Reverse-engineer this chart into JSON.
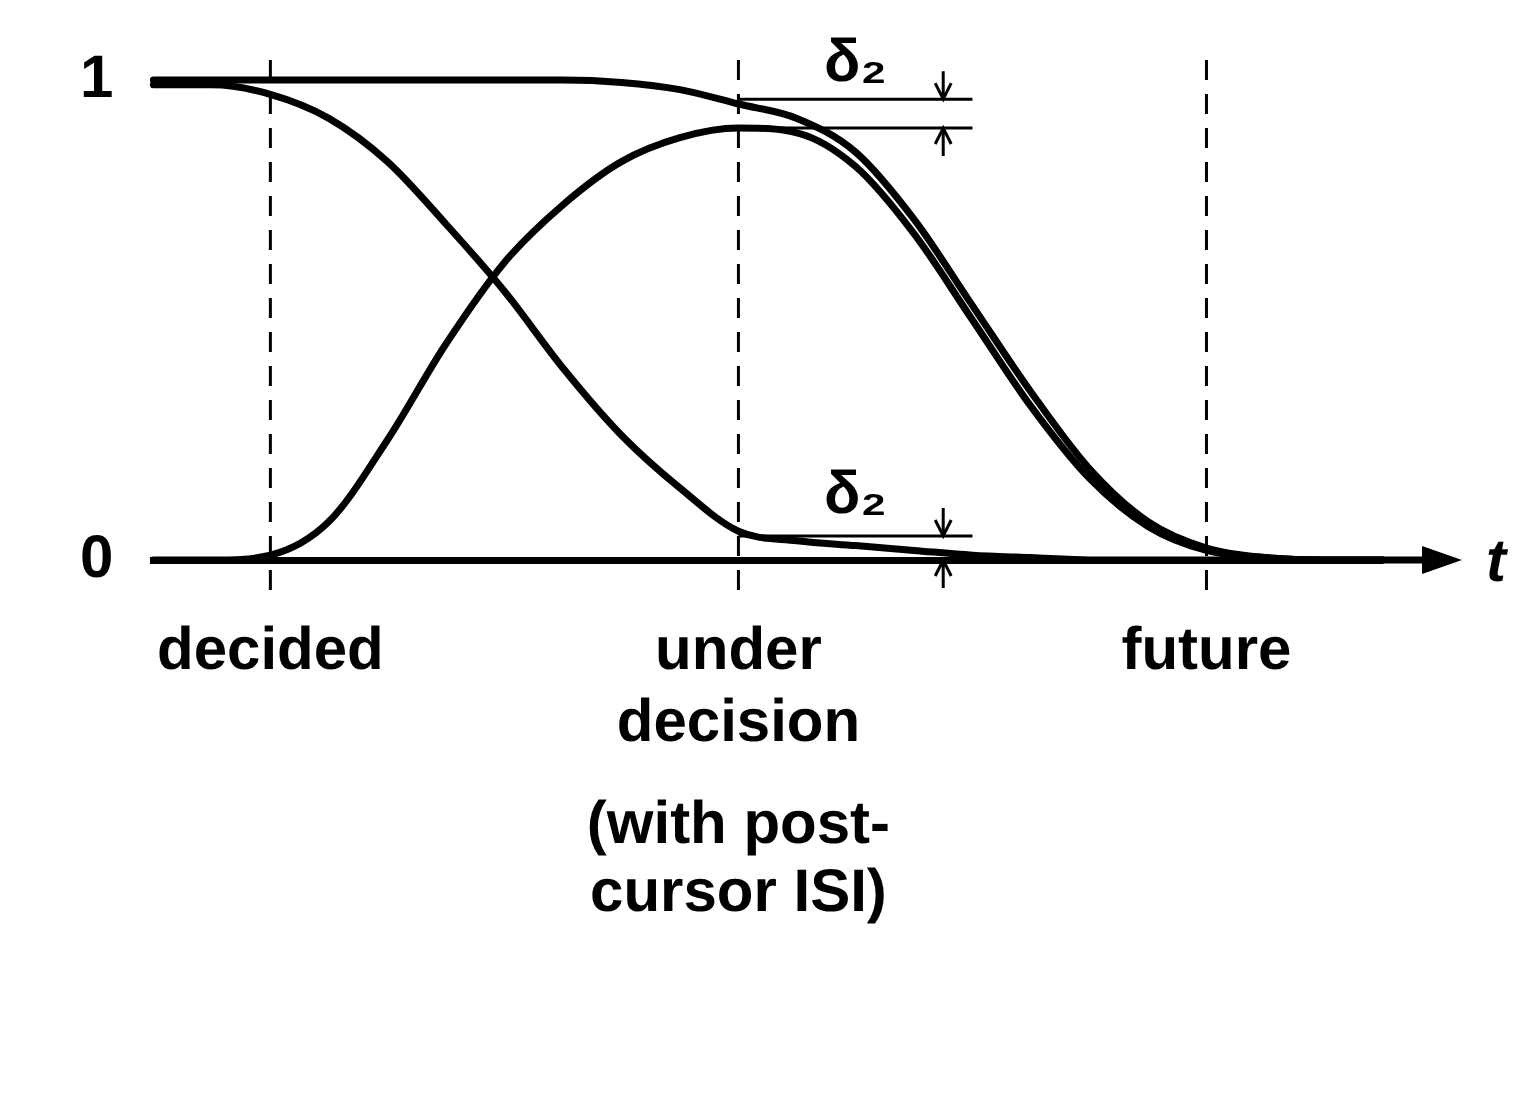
{
  "chart_data": {
    "type": "line",
    "xlabel": "t",
    "categories": [
      null,
      null,
      "decided",
      null,
      null,
      null,
      null,
      null,
      null,
      null,
      "under decision",
      null,
      null,
      null,
      null,
      null,
      null,
      null,
      "future",
      null,
      null,
      null
    ],
    "series": [
      {
        "color": "#000000",
        "values": [
          0.99,
          0.99,
          0.97,
          0.92,
          0.83,
          0.7,
          0.56,
          0.4,
          0.26,
          0.15,
          0.06,
          0.04,
          0.03,
          0.02,
          0.01,
          0.005,
          0,
          0,
          0,
          0,
          0,
          0
        ]
      },
      {
        "color": "#000000",
        "values": [
          0,
          0,
          0.01,
          0.08,
          0.25,
          0.45,
          0.62,
          0.74,
          0.83,
          0.88,
          0.9,
          0.89,
          0.82,
          0.68,
          0.5,
          0.32,
          0.17,
          0.07,
          0.02,
          0.005,
          0,
          0
        ]
      },
      {
        "color": "#000000",
        "values": [
          1,
          1,
          1,
          1,
          1,
          1,
          1,
          1,
          0.995,
          0.98,
          0.95,
          0.92,
          0.85,
          0.71,
          0.53,
          0.35,
          0.19,
          0.08,
          0.025,
          0.005,
          0,
          0
        ]
      }
    ],
    "ylim": [
      0,
      1
    ],
    "yticks": [
      0,
      1
    ],
    "grid": false,
    "legend": false,
    "marker": "none",
    "line_style": "solid",
    "ref_lines": [
      {
        "axis": "x",
        "value": "decided",
        "line_style": "dashed"
      },
      {
        "axis": "x",
        "value": "under decision",
        "line_style": "dashed"
      },
      {
        "axis": "x",
        "value": "future",
        "line_style": "dashed"
      }
    ],
    "annotations": [
      "δ₂",
      "δ₂",
      "(with post-cursor ISI)"
    ]
  }
}
